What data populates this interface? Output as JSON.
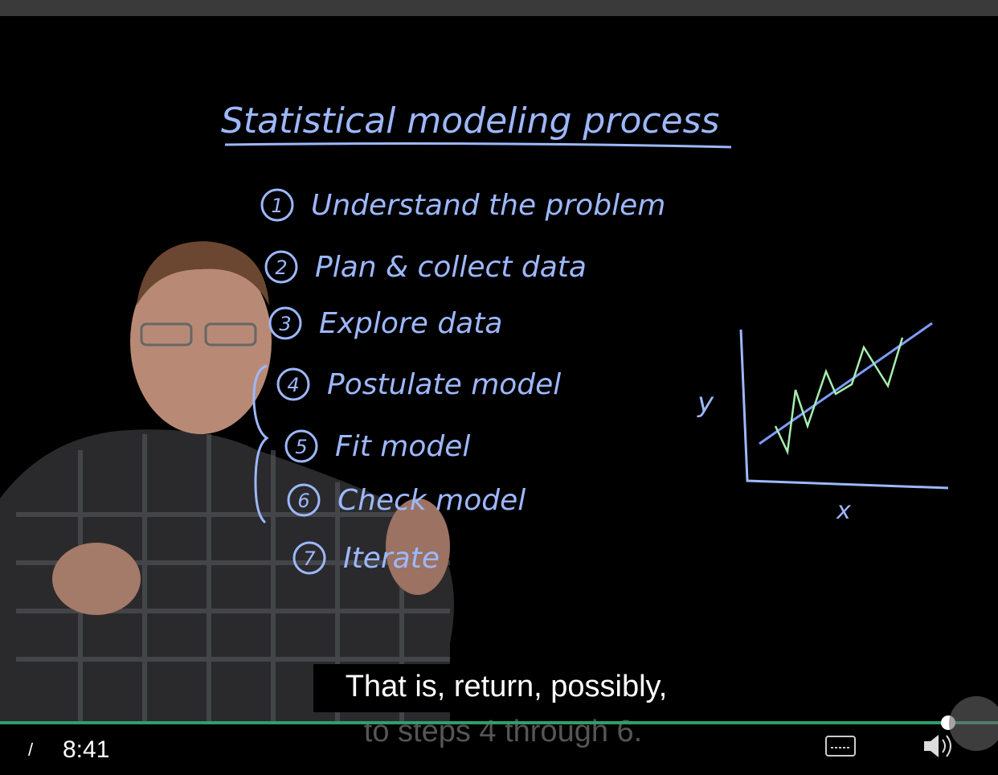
{
  "board": {
    "title": "Statistical modeling process",
    "steps": [
      {
        "number": "1",
        "label": "Understand the problem"
      },
      {
        "number": "2",
        "label": "Plan & collect data"
      },
      {
        "number": "3",
        "label": "Explore data"
      },
      {
        "number": "4",
        "label": "Postulate model"
      },
      {
        "number": "5",
        "label": "Fit model"
      },
      {
        "number": "6",
        "label": "Check model"
      },
      {
        "number": "7",
        "label": "Iterate"
      }
    ],
    "plot": {
      "y_label": "y",
      "x_label": "x"
    }
  },
  "captions": [
    "That is, return, possibly,",
    "to steps 4 through 6."
  ],
  "controls": {
    "separator": "/",
    "time": "8:41"
  }
}
